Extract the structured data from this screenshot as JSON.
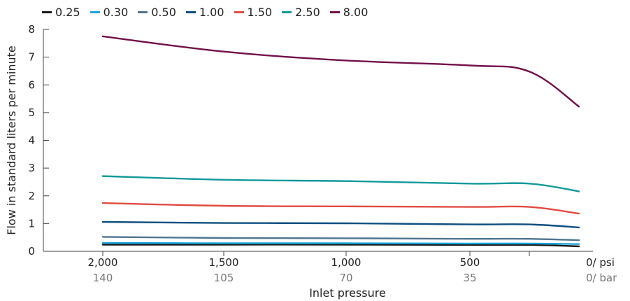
{
  "chart_data": {
    "type": "line",
    "title": "",
    "xlabel": "Inlet pressure",
    "ylabel": "Flow in standard liters per minute",
    "ylim": [
      0,
      8
    ],
    "yticks": [
      "0",
      "1",
      "2",
      "3",
      "4",
      "5",
      "6",
      "7",
      "8"
    ],
    "xticks_psi": [
      "2,000",
      "1,500",
      "1,000",
      "500",
      "0/ psi"
    ],
    "xticks_bar": [
      "140",
      "105",
      "70",
      "35",
      "0/ bar"
    ],
    "x_psi": [
      2000,
      1500,
      1000,
      500,
      250,
      0
    ],
    "series": [
      {
        "name": "0.25",
        "color": "#1a1a1a",
        "values": [
          0.24,
          0.24,
          0.24,
          0.23,
          0.23,
          0.18
        ]
      },
      {
        "name": "0.30",
        "color": "#1aa3dc",
        "values": [
          0.3,
          0.29,
          0.29,
          0.28,
          0.28,
          0.26
        ]
      },
      {
        "name": "0.50",
        "color": "#4f7590",
        "values": [
          0.52,
          0.48,
          0.47,
          0.45,
          0.45,
          0.4
        ]
      },
      {
        "name": "1.00",
        "color": "#0e4f80",
        "values": [
          1.06,
          1.02,
          1.01,
          0.97,
          0.97,
          0.86
        ]
      },
      {
        "name": "1.50",
        "color": "#e04b41",
        "values": [
          1.74,
          1.64,
          1.62,
          1.6,
          1.6,
          1.36
        ]
      },
      {
        "name": "2.50",
        "color": "#13999b",
        "values": [
          2.71,
          2.58,
          2.53,
          2.44,
          2.44,
          2.16
        ]
      },
      {
        "name": "8.00",
        "color": "#73104a",
        "values": [
          7.75,
          7.2,
          6.88,
          6.7,
          6.48,
          5.22
        ]
      }
    ]
  }
}
